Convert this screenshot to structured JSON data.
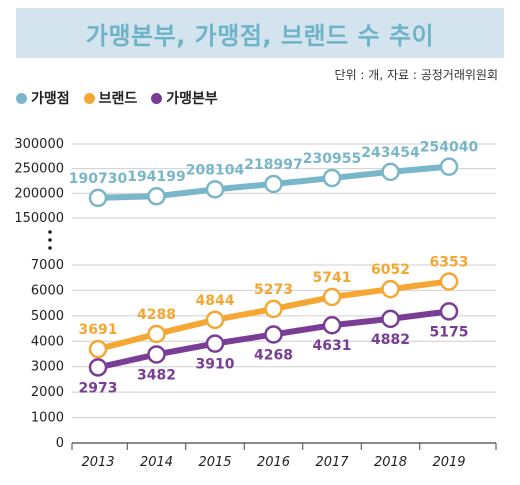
{
  "title": "가맹본부, 가맹점, 브랜드 수 추이",
  "source_note": "단위 : 개, 자료 : 공정거래위원회",
  "legend": [
    {
      "label": "가맹점",
      "color": "#7ab6c9"
    },
    {
      "label": "브랜드",
      "color": "#f5a733"
    },
    {
      "label": "가맹본부",
      "color": "#7a3d96"
    }
  ],
  "chart_data": {
    "type": "line",
    "title": "가맹본부, 가맹점, 브랜드 수 추이",
    "x": [
      "2013",
      "2014",
      "2015",
      "2016",
      "2017",
      "2018",
      "2019"
    ],
    "axis_break": true,
    "upper_y_ticks": [
      "300000",
      "250000",
      "200000",
      "150000"
    ],
    "lower_y_ticks": [
      "7000",
      "6000",
      "5000",
      "4000",
      "3000",
      "2000",
      "1000",
      "0"
    ],
    "upper_ylim": [
      150000,
      300000
    ],
    "lower_ylim": [
      0,
      7000
    ],
    "series": [
      {
        "name": "가맹점",
        "color": "#7ab6c9",
        "values": [
          190730,
          194199,
          208104,
          218997,
          230955,
          243454,
          254040
        ],
        "labels": [
          "190730",
          "194199",
          "208104",
          "218997",
          "230955",
          "243454",
          "254040"
        ],
        "label_position": "above"
      },
      {
        "name": "브랜드",
        "color": "#f5a733",
        "values": [
          3691,
          4288,
          4844,
          5273,
          5741,
          6052,
          6353
        ],
        "labels": [
          "3691",
          "4288",
          "4844",
          "5273",
          "5741",
          "6052",
          "6353"
        ],
        "label_position": "above"
      },
      {
        "name": "가맹본부",
        "color": "#7a3d96",
        "values": [
          2973,
          3482,
          3910,
          4268,
          4631,
          4882,
          5175
        ],
        "labels": [
          "2973",
          "3482",
          "3910",
          "4268",
          "4631",
          "4882",
          "5175"
        ],
        "label_position": "below"
      }
    ],
    "grid": true
  }
}
